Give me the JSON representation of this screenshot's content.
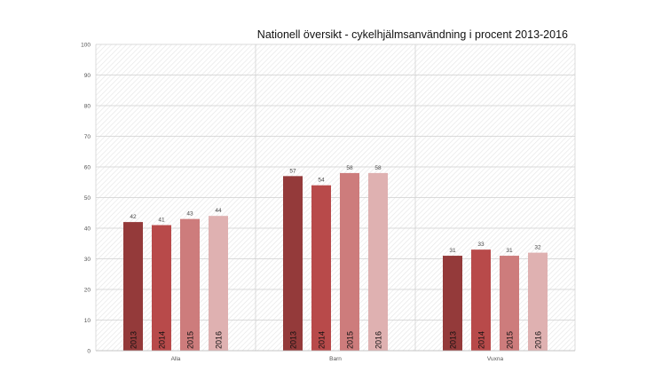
{
  "chart_data": {
    "type": "bar",
    "title": "Nationell översikt - cykelhjälmsanvändning i procent 2013-2016",
    "xlabel": "",
    "ylabel": "",
    "categories": [
      "Alla",
      "Barn",
      "Vuxna"
    ],
    "ylim": [
      0,
      100
    ],
    "yticks": [
      0,
      10,
      20,
      30,
      40,
      50,
      60,
      70,
      80,
      90,
      100
    ],
    "grid": true,
    "legend": "none",
    "series": [
      {
        "name": "2013",
        "color": "#943a3a",
        "values": [
          42,
          57,
          31
        ]
      },
      {
        "name": "2014",
        "color": "#b84a4a",
        "values": [
          41,
          54,
          33
        ]
      },
      {
        "name": "2015",
        "color": "#cd7c7c",
        "values": [
          43,
          58,
          31
        ]
      },
      {
        "name": "2016",
        "color": "#dfb1b1",
        "values": [
          44,
          58,
          32
        ]
      }
    ]
  }
}
